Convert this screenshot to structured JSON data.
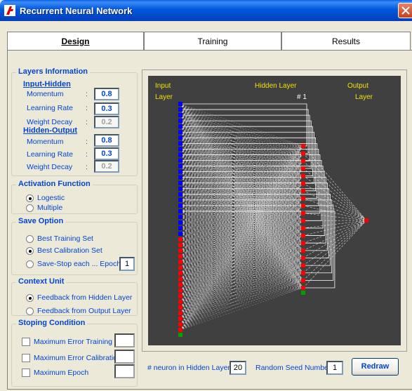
{
  "window": {
    "title": "Recurrent Neural Network"
  },
  "tabs": [
    {
      "label": "Design",
      "active": true
    },
    {
      "label": "Training",
      "active": false
    },
    {
      "label": "Results",
      "active": false
    }
  ],
  "layers_info": {
    "title": "Layers Information",
    "input_hidden": {
      "heading": "Input-Hidden",
      "params": [
        {
          "label": "Momentum",
          "value": "0.8",
          "enabled": true
        },
        {
          "label": "Learning Rate",
          "value": "0.3",
          "enabled": true
        },
        {
          "label": "Weight Decay",
          "value": "0.2",
          "enabled": false
        }
      ]
    },
    "hidden_output": {
      "heading": "Hidden-Output",
      "params": [
        {
          "label": "Momentum",
          "value": "0.8",
          "enabled": true
        },
        {
          "label": "Learning Rate",
          "value": "0.3",
          "enabled": true
        },
        {
          "label": "Weight Decay",
          "value": "0.2",
          "enabled": false
        }
      ]
    },
    "colon": ":"
  },
  "activation": {
    "title": "Activation Function",
    "options": [
      {
        "label": "Logestic",
        "checked": true
      },
      {
        "label": "Multiple",
        "checked": false
      }
    ]
  },
  "save_option": {
    "title": "Save Option",
    "options": [
      {
        "label": "Best Training Set",
        "checked": false
      },
      {
        "label": "Best Calibration Set",
        "checked": true
      },
      {
        "label": "Save-Stop  each ... Epoch",
        "checked": false
      }
    ],
    "epoch_value": "1"
  },
  "context_unit": {
    "title": "Context Unit",
    "options": [
      {
        "label": "Feedback from Hidden Layer",
        "checked": true
      },
      {
        "label": "Feedback from Output Layer",
        "checked": false
      }
    ]
  },
  "stopping": {
    "title": "Stoping Condition",
    "options": [
      {
        "label": "Maximum Error Training",
        "checked": false
      },
      {
        "label": "Maximum Error Calibration",
        "checked": false
      },
      {
        "label": "Maximum Epoch",
        "checked": false
      }
    ]
  },
  "network": {
    "input_label_1": "Input",
    "input_label_2": "Layer",
    "hidden_label": "Hidden Layer",
    "hidden_index": "# 1",
    "output_label_1": "Output",
    "output_label_2": "Layer",
    "input_neurons_blue": 24,
    "input_neurons_red": 17,
    "hidden_neurons": 20,
    "colors": {
      "background": "#404040",
      "input_blue": "#0000FF",
      "neuron_red": "#FF0000",
      "bias_green": "#00A000",
      "connection": "#FFFFFF",
      "label": "#F2E100"
    }
  },
  "bottom": {
    "hidden_neurons_label": "# neuron in Hidden Layer:",
    "hidden_neurons_value": "20",
    "seed_label": "Random Seed Number:",
    "seed_value": "1",
    "redraw_label": "Redraw"
  }
}
